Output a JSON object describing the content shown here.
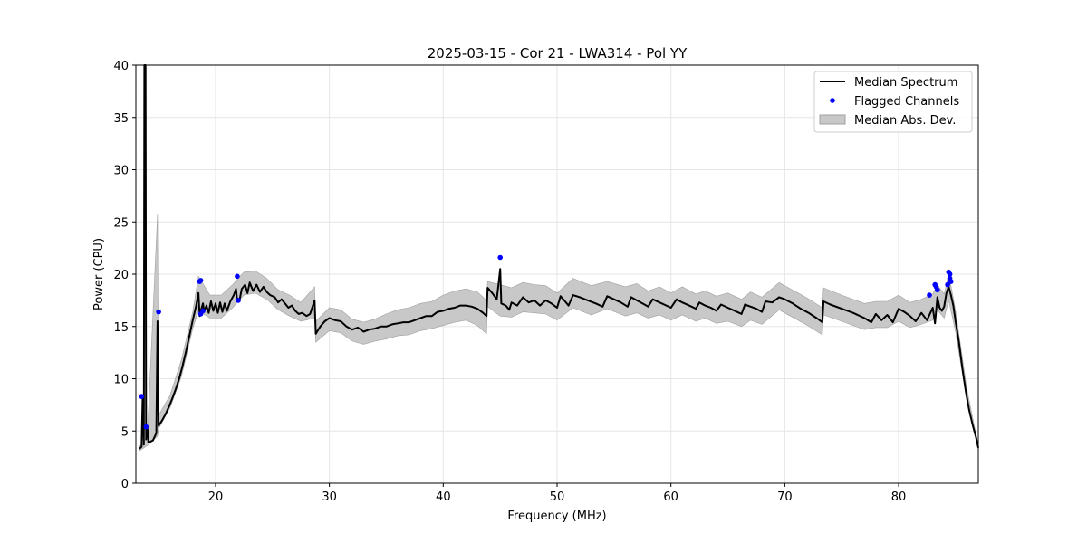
{
  "chart_data": {
    "type": "line",
    "title": "2025-03-15 - Cor 21 - LWA314 - Pol YY",
    "xlabel": "Frequency (MHz)",
    "ylabel": "Power (CPU)",
    "xlim": [
      13.0,
      87.0
    ],
    "ylim": [
      0,
      40
    ],
    "xticks": [
      20,
      30,
      40,
      50,
      60,
      70,
      80
    ],
    "yticks": [
      0,
      5,
      10,
      15,
      20,
      25,
      30,
      35,
      40
    ],
    "grid": true,
    "legend_position": "top-right",
    "colors": {
      "median": "#000000",
      "flagged": "#0000ff",
      "mad": "#c8c8c8",
      "mad_edge": "#a0a0a0"
    },
    "legend": [
      "Median Spectrum",
      "Flagged Channels",
      "Median Abs. Dev."
    ],
    "series": [
      {
        "name": "Median Spectrum",
        "points": [
          [
            13.3,
            3.3
          ],
          [
            13.5,
            3.5
          ],
          [
            13.6,
            8.3
          ],
          [
            13.7,
            3.7
          ],
          [
            13.75,
            40
          ],
          [
            13.85,
            40
          ],
          [
            13.9,
            4.2
          ],
          [
            14.0,
            5.5
          ],
          [
            14.1,
            3.9
          ],
          [
            14.5,
            4.1
          ],
          [
            14.8,
            4.8
          ],
          [
            14.9,
            15.5
          ],
          [
            15.0,
            5.5
          ],
          [
            15.3,
            6.0
          ],
          [
            15.6,
            6.6
          ],
          [
            15.9,
            7.3
          ],
          [
            16.2,
            8.1
          ],
          [
            16.5,
            9.0
          ],
          [
            16.8,
            10.0
          ],
          [
            17.1,
            11.2
          ],
          [
            17.4,
            12.6
          ],
          [
            17.7,
            14.1
          ],
          [
            18.0,
            15.6
          ],
          [
            18.3,
            17.0
          ],
          [
            18.5,
            18.2
          ],
          [
            18.6,
            16.0
          ],
          [
            18.7,
            16.5
          ],
          [
            18.9,
            17.2
          ],
          [
            19.0,
            16.4
          ],
          [
            19.2,
            17.0
          ],
          [
            19.4,
            16.3
          ],
          [
            19.6,
            17.4
          ],
          [
            19.8,
            16.5
          ],
          [
            20.0,
            17.2
          ],
          [
            20.2,
            16.3
          ],
          [
            20.4,
            17.3
          ],
          [
            20.6,
            16.4
          ],
          [
            20.8,
            17.2
          ],
          [
            21.0,
            16.5
          ],
          [
            21.3,
            17.4
          ],
          [
            21.6,
            18.0
          ],
          [
            21.8,
            18.6
          ],
          [
            21.9,
            17.4
          ],
          [
            22.1,
            17.5
          ],
          [
            22.3,
            18.6
          ],
          [
            22.6,
            19.0
          ],
          [
            22.8,
            18.2
          ],
          [
            23.0,
            19.2
          ],
          [
            23.3,
            18.4
          ],
          [
            23.6,
            19.0
          ],
          [
            23.9,
            18.3
          ],
          [
            24.2,
            18.8
          ],
          [
            24.5,
            18.3
          ],
          [
            24.8,
            18.0
          ],
          [
            25.2,
            17.8
          ],
          [
            25.5,
            17.3
          ],
          [
            25.8,
            17.6
          ],
          [
            26.1,
            17.2
          ],
          [
            26.4,
            16.8
          ],
          [
            26.7,
            17.0
          ],
          [
            27.0,
            16.5
          ],
          [
            27.3,
            16.2
          ],
          [
            27.6,
            16.3
          ],
          [
            28.0,
            16.0
          ],
          [
            28.3,
            16.2
          ],
          [
            28.7,
            17.5
          ],
          [
            28.8,
            14.3
          ],
          [
            29.2,
            15.0
          ],
          [
            29.6,
            15.5
          ],
          [
            30.0,
            15.8
          ],
          [
            30.5,
            15.6
          ],
          [
            31.0,
            15.5
          ],
          [
            31.5,
            15.0
          ],
          [
            32.0,
            14.7
          ],
          [
            32.5,
            14.9
          ],
          [
            33.0,
            14.5
          ],
          [
            33.5,
            14.7
          ],
          [
            34.0,
            14.8
          ],
          [
            34.5,
            15.0
          ],
          [
            35.0,
            15.0
          ],
          [
            35.5,
            15.2
          ],
          [
            36.0,
            15.3
          ],
          [
            36.5,
            15.4
          ],
          [
            37.0,
            15.4
          ],
          [
            37.5,
            15.6
          ],
          [
            38.0,
            15.8
          ],
          [
            38.5,
            16.0
          ],
          [
            39.0,
            16.0
          ],
          [
            39.5,
            16.4
          ],
          [
            40.0,
            16.5
          ],
          [
            40.5,
            16.7
          ],
          [
            41.0,
            16.8
          ],
          [
            41.5,
            17.0
          ],
          [
            42.0,
            17.0
          ],
          [
            42.5,
            16.9
          ],
          [
            43.0,
            16.7
          ],
          [
            43.5,
            16.3
          ],
          [
            43.8,
            16.0
          ],
          [
            43.9,
            18.7
          ],
          [
            44.3,
            18.2
          ],
          [
            44.7,
            17.6
          ],
          [
            45.0,
            20.5
          ],
          [
            45.1,
            17.2
          ],
          [
            45.5,
            17.0
          ],
          [
            45.8,
            16.6
          ],
          [
            46.0,
            17.3
          ],
          [
            46.5,
            17.0
          ],
          [
            47.0,
            17.8
          ],
          [
            47.5,
            17.3
          ],
          [
            48.0,
            17.5
          ],
          [
            48.5,
            17.0
          ],
          [
            49.0,
            17.5
          ],
          [
            49.5,
            17.2
          ],
          [
            50.0,
            16.8
          ],
          [
            50.3,
            17.9
          ],
          [
            50.7,
            17.4
          ],
          [
            51.0,
            17.0
          ],
          [
            51.4,
            18.0
          ],
          [
            52.0,
            17.8
          ],
          [
            52.7,
            17.5
          ],
          [
            53.4,
            17.2
          ],
          [
            54.0,
            16.9
          ],
          [
            54.4,
            17.9
          ],
          [
            55.0,
            17.6
          ],
          [
            55.6,
            17.3
          ],
          [
            56.2,
            16.9
          ],
          [
            56.5,
            17.8
          ],
          [
            57.0,
            17.5
          ],
          [
            57.5,
            17.2
          ],
          [
            58.0,
            16.9
          ],
          [
            58.4,
            17.6
          ],
          [
            59.0,
            17.3
          ],
          [
            59.6,
            17.0
          ],
          [
            60.0,
            16.8
          ],
          [
            60.5,
            17.6
          ],
          [
            61.0,
            17.3
          ],
          [
            61.6,
            17.0
          ],
          [
            62.2,
            16.7
          ],
          [
            62.5,
            17.3
          ],
          [
            63.0,
            17.0
          ],
          [
            63.5,
            16.8
          ],
          [
            64.0,
            16.5
          ],
          [
            64.4,
            17.1
          ],
          [
            65.0,
            16.8
          ],
          [
            65.6,
            16.5
          ],
          [
            66.2,
            16.2
          ],
          [
            66.5,
            17.1
          ],
          [
            67.0,
            16.9
          ],
          [
            67.5,
            16.7
          ],
          [
            68.0,
            16.4
          ],
          [
            68.3,
            17.4
          ],
          [
            68.9,
            17.3
          ],
          [
            69.5,
            17.8
          ],
          [
            70.0,
            17.6
          ],
          [
            70.7,
            17.2
          ],
          [
            71.4,
            16.7
          ],
          [
            72.1,
            16.3
          ],
          [
            72.8,
            15.8
          ],
          [
            73.3,
            15.4
          ],
          [
            73.4,
            17.4
          ],
          [
            74.0,
            17.1
          ],
          [
            75.0,
            16.7
          ],
          [
            76.0,
            16.3
          ],
          [
            77.0,
            15.8
          ],
          [
            77.6,
            15.4
          ],
          [
            78.0,
            16.2
          ],
          [
            78.5,
            15.6
          ],
          [
            79.0,
            16.1
          ],
          [
            79.5,
            15.4
          ],
          [
            80.0,
            16.7
          ],
          [
            80.5,
            16.4
          ],
          [
            81.0,
            16.0
          ],
          [
            81.5,
            15.5
          ],
          [
            82.0,
            16.3
          ],
          [
            82.5,
            15.6
          ],
          [
            83.0,
            16.8
          ],
          [
            83.2,
            15.3
          ],
          [
            83.4,
            17.8
          ],
          [
            83.6,
            16.8
          ],
          [
            83.8,
            16.5
          ],
          [
            84.0,
            16.9
          ],
          [
            84.2,
            18.2
          ],
          [
            84.4,
            18.8
          ],
          [
            84.6,
            18.0
          ],
          [
            84.8,
            17.0
          ],
          [
            85.0,
            15.5
          ],
          [
            85.3,
            13.5
          ],
          [
            85.6,
            11.0
          ],
          [
            85.9,
            8.8
          ],
          [
            86.2,
            7.0
          ],
          [
            86.5,
            5.6
          ],
          [
            86.8,
            4.4
          ],
          [
            87.0,
            3.4
          ]
        ]
      },
      {
        "name": "Flagged Channels",
        "points": [
          [
            13.5,
            8.3
          ],
          [
            13.9,
            5.4
          ],
          [
            15.0,
            16.4
          ],
          [
            18.6,
            19.3
          ],
          [
            18.7,
            19.4
          ],
          [
            18.7,
            16.2
          ],
          [
            18.9,
            16.5
          ],
          [
            21.9,
            19.8
          ],
          [
            22.0,
            17.5
          ],
          [
            45.0,
            21.6
          ],
          [
            82.7,
            18.0
          ],
          [
            83.2,
            19.0
          ],
          [
            83.3,
            18.8
          ],
          [
            83.4,
            18.5
          ],
          [
            84.3,
            19.0
          ],
          [
            84.4,
            20.2
          ],
          [
            84.5,
            20.0
          ],
          [
            84.5,
            19.6
          ],
          [
            84.6,
            19.3
          ]
        ]
      },
      {
        "name": "Median Abs. Dev.",
        "band": [
          [
            13.3,
            3.1,
            3.5
          ],
          [
            14.0,
            3.6,
            4.4
          ],
          [
            14.9,
            4.5,
            25.7
          ],
          [
            15.0,
            5.2,
            6.5
          ],
          [
            16.0,
            7.2,
            8.4
          ],
          [
            17.0,
            10.2,
            11.8
          ],
          [
            18.0,
            14.8,
            16.4
          ],
          [
            18.5,
            16.5,
            19.8
          ],
          [
            19.5,
            15.8,
            18.0
          ],
          [
            20.5,
            15.8,
            18.0
          ],
          [
            21.5,
            16.8,
            19.0
          ],
          [
            22.5,
            18.0,
            20.2
          ],
          [
            23.5,
            18.2,
            20.3
          ],
          [
            24.5,
            17.6,
            19.6
          ],
          [
            25.5,
            16.6,
            18.5
          ],
          [
            26.5,
            16.0,
            18.0
          ],
          [
            27.5,
            15.5,
            17.3
          ],
          [
            28.7,
            15.8,
            18.8
          ],
          [
            28.8,
            13.5,
            15.5
          ],
          [
            30.0,
            14.6,
            16.8
          ],
          [
            31.0,
            14.4,
            16.6
          ],
          [
            32.0,
            13.6,
            15.7
          ],
          [
            33.0,
            13.3,
            15.4
          ],
          [
            34.0,
            13.6,
            15.7
          ],
          [
            35.0,
            13.8,
            16.2
          ],
          [
            36.0,
            14.1,
            16.6
          ],
          [
            37.0,
            14.2,
            16.8
          ],
          [
            38.0,
            14.6,
            17.2
          ],
          [
            39.0,
            14.8,
            17.4
          ],
          [
            40.0,
            15.1,
            18.0
          ],
          [
            41.0,
            15.4,
            18.4
          ],
          [
            42.0,
            15.6,
            18.6
          ],
          [
            43.0,
            15.1,
            18.3
          ],
          [
            43.8,
            14.3,
            17.5
          ],
          [
            43.9,
            16.9,
            19.3
          ],
          [
            45.0,
            16.0,
            19.0
          ],
          [
            46.0,
            15.9,
            18.7
          ],
          [
            47.0,
            16.4,
            19.2
          ],
          [
            48.0,
            16.3,
            19.0
          ],
          [
            49.0,
            16.2,
            18.9
          ],
          [
            50.0,
            15.6,
            18.2
          ],
          [
            51.4,
            16.8,
            19.6
          ],
          [
            53.0,
            16.1,
            18.9
          ],
          [
            54.4,
            16.7,
            19.3
          ],
          [
            56.0,
            16.0,
            18.8
          ],
          [
            57.0,
            16.3,
            19.1
          ],
          [
            58.0,
            15.8,
            18.4
          ],
          [
            59.0,
            16.1,
            18.8
          ],
          [
            60.0,
            15.6,
            18.2
          ],
          [
            61.0,
            16.1,
            18.8
          ],
          [
            62.2,
            15.5,
            18.1
          ],
          [
            63.0,
            15.8,
            18.4
          ],
          [
            64.0,
            15.3,
            17.9
          ],
          [
            65.0,
            15.5,
            18.2
          ],
          [
            66.2,
            15.0,
            17.6
          ],
          [
            67.0,
            15.6,
            18.3
          ],
          [
            68.0,
            15.2,
            17.8
          ],
          [
            69.5,
            16.6,
            19.2
          ],
          [
            71.0,
            15.7,
            18.3
          ],
          [
            72.0,
            15.1,
            17.7
          ],
          [
            73.3,
            14.2,
            16.8
          ],
          [
            73.4,
            16.1,
            18.7
          ],
          [
            75.0,
            15.5,
            18.0
          ],
          [
            77.0,
            14.7,
            17.2
          ],
          [
            78.0,
            14.9,
            17.4
          ],
          [
            79.0,
            14.9,
            17.4
          ],
          [
            80.0,
            15.5,
            18.0
          ],
          [
            81.0,
            14.9,
            17.3
          ],
          [
            82.0,
            15.2,
            17.6
          ],
          [
            83.0,
            15.6,
            18.1
          ],
          [
            83.4,
            16.6,
            19.0
          ],
          [
            84.0,
            15.8,
            18.1
          ],
          [
            84.4,
            17.5,
            20.1
          ],
          [
            85.0,
            14.5,
            16.5
          ],
          [
            86.0,
            7.8,
            9.0
          ],
          [
            87.0,
            3.2,
            3.6
          ]
        ]
      }
    ]
  }
}
